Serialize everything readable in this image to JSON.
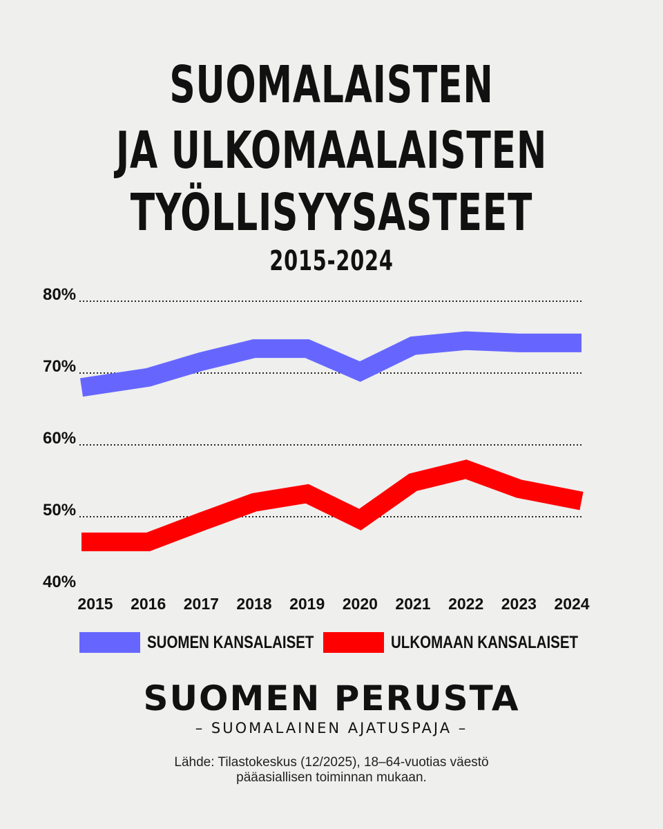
{
  "title_lines": [
    "SUOMALAISTEN",
    "JA ULKOMAALAISTEN",
    "TYÖLLISYYSASTEET"
  ],
  "subtitle": "2015-2024",
  "colors": {
    "suomen": "#6666ff",
    "ulkomaan": "#ff0000",
    "grid": "#222222"
  },
  "chart_data": {
    "type": "line",
    "x": [
      "2015",
      "2016",
      "2017",
      "2018",
      "2019",
      "2020",
      "2021",
      "2022",
      "2023",
      "2024"
    ],
    "ylim": [
      40,
      80
    ],
    "yticks": [
      "40%",
      "50%",
      "60%",
      "70%",
      "80%"
    ],
    "ytick_values": [
      40,
      50,
      60,
      70,
      80
    ],
    "grid": true,
    "legend_position": "bottom",
    "series": [
      {
        "name": "SUOMEN KANSALAISET",
        "values": [
          68.0,
          69.4,
          71.6,
          73.4,
          73.4,
          70.2,
          73.8,
          74.5,
          74.2,
          74.2
        ]
      },
      {
        "name": "ULKOMAAN KANSALAISET",
        "values": [
          46.5,
          46.5,
          49.3,
          52.0,
          53.2,
          49.6,
          54.8,
          56.6,
          53.9,
          52.2
        ]
      }
    ]
  },
  "legend": {
    "item1": "SUOMEN KANSALAISET",
    "item2": "ULKOMAAN KANSALAISET"
  },
  "brand": {
    "name": "SUOMEN PERUSTA",
    "tagline": "– SUOMALAINEN AJATUSPAJA –"
  },
  "source": {
    "line1": "Lähde: Tilastokeskus (12/2025), 18–64-vuotias väestö",
    "line2": "pääasiallisen toiminnan mukaan."
  }
}
